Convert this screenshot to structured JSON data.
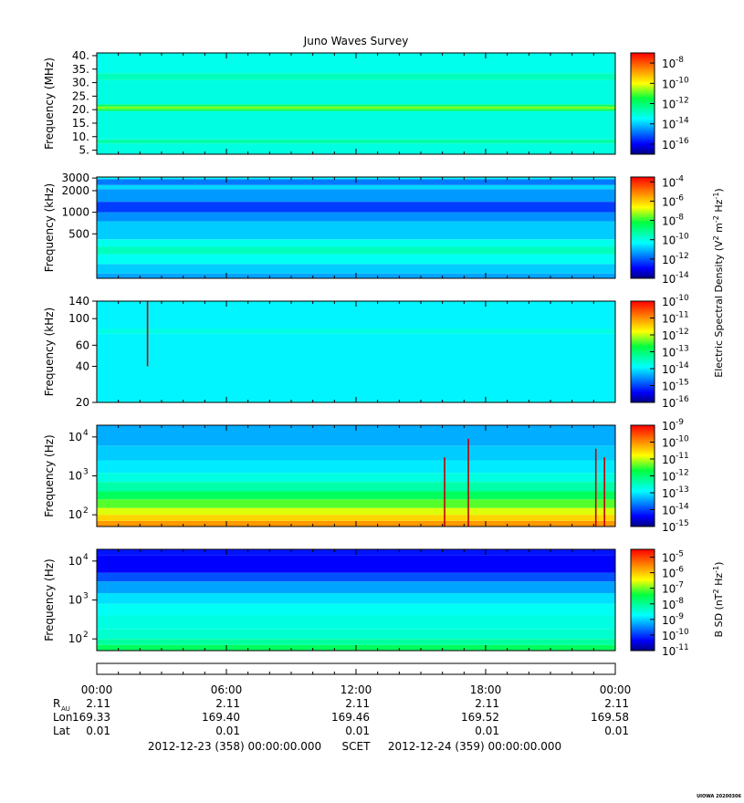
{
  "chart_data": {
    "type": "heatmap",
    "title": "Juno Waves Survey",
    "panels": [
      {
        "ylabel": "Frequency (MHz)",
        "yscale": "linear",
        "ylim": [
          3.5,
          41
        ],
        "yticks": [
          5,
          10,
          15,
          20,
          25,
          30,
          35,
          40
        ],
        "ytick_labels": [
          "5.",
          "10.",
          "15.",
          "20.",
          "25.",
          "30.",
          "35.",
          "40."
        ],
        "colorbar": {
          "exp_min": -17,
          "exp_max": -7,
          "tick_exponents": [
            -16,
            -14,
            -12,
            -10,
            -8
          ]
        },
        "bands": [
          {
            "from": 3.5,
            "to": 7.5,
            "level": 0.38
          },
          {
            "from": 7.5,
            "to": 9.0,
            "level": 0.44
          },
          {
            "from": 9.0,
            "to": 19.5,
            "level": 0.38
          },
          {
            "from": 19.5,
            "to": 20.2,
            "level": 0.52
          },
          {
            "from": 20.2,
            "to": 21.2,
            "level": 0.62
          },
          {
            "from": 21.2,
            "to": 22.0,
            "level": 0.5
          },
          {
            "from": 22.0,
            "to": 31.0,
            "level": 0.38
          },
          {
            "from": 31.0,
            "to": 33.5,
            "level": 0.42
          },
          {
            "from": 33.5,
            "to": 41.0,
            "level": 0.37
          }
        ]
      },
      {
        "ylabel": "Frequency (kHz)",
        "yscale": "log",
        "ylim": [
          120,
          3100
        ],
        "yticks": [
          500,
          1000,
          2000,
          3000
        ],
        "ytick_labels": [
          "500",
          "1000",
          "2000",
          "3000"
        ],
        "colorbar": {
          "exp_min": -14,
          "exp_max": -3.5,
          "tick_exponents": [
            -14,
            -12,
            -10,
            -8,
            -6,
            -4
          ]
        },
        "bands": [
          {
            "from": 120,
            "to": 140,
            "level": 0.26
          },
          {
            "from": 140,
            "to": 190,
            "level": 0.3
          },
          {
            "from": 190,
            "to": 260,
            "level": 0.36
          },
          {
            "from": 260,
            "to": 330,
            "level": 0.42
          },
          {
            "from": 330,
            "to": 420,
            "level": 0.37
          },
          {
            "from": 420,
            "to": 750,
            "level": 0.3
          },
          {
            "from": 750,
            "to": 1000,
            "level": 0.24
          },
          {
            "from": 1000,
            "to": 1400,
            "level": 0.16
          },
          {
            "from": 1400,
            "to": 2100,
            "level": 0.25
          },
          {
            "from": 2100,
            "to": 2400,
            "level": 0.31
          },
          {
            "from": 2400,
            "to": 2900,
            "level": 0.22
          },
          {
            "from": 2900,
            "to": 3100,
            "level": 0.34
          }
        ]
      },
      {
        "ylabel": "Frequency (kHz)",
        "yscale": "log",
        "ylim": [
          20,
          140
        ],
        "yticks": [
          20,
          40,
          60,
          100,
          140
        ],
        "ytick_labels": [
          "20",
          "40",
          "60",
          "100",
          "140"
        ],
        "colorbar": {
          "exp_min": -16,
          "exp_max": -10,
          "tick_exponents": [
            -16,
            -15,
            -14,
            -13,
            -12,
            -11,
            -10
          ]
        },
        "bands": [
          {
            "from": 20,
            "to": 75,
            "level": 0.34
          },
          {
            "from": 75,
            "to": 82,
            "level": 0.38
          },
          {
            "from": 82,
            "to": 140,
            "level": 0.34
          }
        ],
        "spikes": [
          {
            "hour": 2.35,
            "from": 40,
            "to": 140
          }
        ]
      },
      {
        "ylabel": "Frequency (Hz)",
        "yscale": "log",
        "ylim": [
          50,
          20000
        ],
        "yticks": [
          100,
          1000,
          10000
        ],
        "ytick_labels": [
          "10",
          "10",
          "10"
        ],
        "ytick_sups": [
          "2",
          "3",
          "4"
        ],
        "colorbar": {
          "exp_min": -15,
          "exp_max": -9,
          "tick_exponents": [
            -15,
            -14,
            -13,
            -12,
            -11,
            -10,
            -9
          ]
        },
        "bands": [
          {
            "from": 50,
            "to": 70,
            "level": 0.82
          },
          {
            "from": 70,
            "to": 100,
            "level": 0.75
          },
          {
            "from": 100,
            "to": 150,
            "level": 0.68
          },
          {
            "from": 150,
            "to": 250,
            "level": 0.6
          },
          {
            "from": 250,
            "to": 400,
            "level": 0.52
          },
          {
            "from": 400,
            "to": 700,
            "level": 0.44
          },
          {
            "from": 700,
            "to": 1200,
            "level": 0.38
          },
          {
            "from": 1200,
            "to": 2500,
            "level": 0.33
          },
          {
            "from": 2500,
            "to": 6000,
            "level": 0.3
          },
          {
            "from": 6000,
            "to": 20000,
            "level": 0.27
          }
        ],
        "spikes": [
          {
            "hour": 16.1,
            "from": 50,
            "to": 3000
          },
          {
            "hour": 17.2,
            "from": 50,
            "to": 9000
          },
          {
            "hour": 23.1,
            "from": 50,
            "to": 5000
          },
          {
            "hour": 23.5,
            "from": 50,
            "to": 3000
          }
        ]
      },
      {
        "ylabel": "Frequency (Hz)",
        "yscale": "log",
        "ylim": [
          50,
          20000
        ],
        "yticks": [
          100,
          1000,
          10000
        ],
        "ytick_labels": [
          "10",
          "10",
          "10"
        ],
        "ytick_sups": [
          "2",
          "3",
          "4"
        ],
        "colorbar": {
          "exp_min": -11,
          "exp_max": -4.5,
          "tick_exponents": [
            -11,
            -10,
            -9,
            -8,
            -7,
            -6,
            -5
          ]
        },
        "bands": [
          {
            "from": 50,
            "to": 70,
            "level": 0.52
          },
          {
            "from": 70,
            "to": 100,
            "level": 0.45
          },
          {
            "from": 100,
            "to": 180,
            "level": 0.4
          },
          {
            "from": 180,
            "to": 400,
            "level": 0.38
          },
          {
            "from": 400,
            "to": 800,
            "level": 0.36
          },
          {
            "from": 800,
            "to": 1500,
            "level": 0.32
          },
          {
            "from": 1500,
            "to": 3000,
            "level": 0.26
          },
          {
            "from": 3000,
            "to": 5000,
            "level": 0.18
          },
          {
            "from": 5000,
            "to": 14000,
            "level": 0.1
          },
          {
            "from": 14000,
            "to": 20000,
            "level": 0.12
          }
        ]
      }
    ],
    "colorbar_labels": [
      {
        "text": "Electric Spectral Density (V",
        "sup1": "2",
        "mid": " m",
        "sup2": "-2",
        "mid2": " Hz",
        "sup3": "-1",
        "end": ")"
      },
      {
        "text": "B SD (nT",
        "sup1": "2",
        "mid": " Hz",
        "sup2": "-1",
        "mid2": "",
        "sup3": "",
        "end": ")"
      }
    ],
    "colorbar_base": "10",
    "time_axis": {
      "hours": [
        0,
        6,
        12,
        18,
        24
      ],
      "tick_labels": [
        "00:00",
        "06:00",
        "12:00",
        "18:00",
        "00:00"
      ],
      "row_labels": {
        "rau": "R",
        "rau_sub": "AU",
        "lon": "Lon",
        "lat": "Lat"
      },
      "rau": [
        "2.11",
        "2.11",
        "2.11",
        "2.11",
        "2.11"
      ],
      "lon": [
        "169.33",
        "169.40",
        "169.46",
        "169.52",
        "169.58"
      ],
      "lat": [
        "0.01",
        "0.01",
        "0.01",
        "0.01",
        "0.01"
      ]
    },
    "footer": {
      "start": "2012-12-23 (358) 00:00:00.000",
      "scet": "SCET",
      "end": "2012-12-24 (359) 00:00:00.000"
    },
    "stamp": "UIOWA 20200306"
  }
}
